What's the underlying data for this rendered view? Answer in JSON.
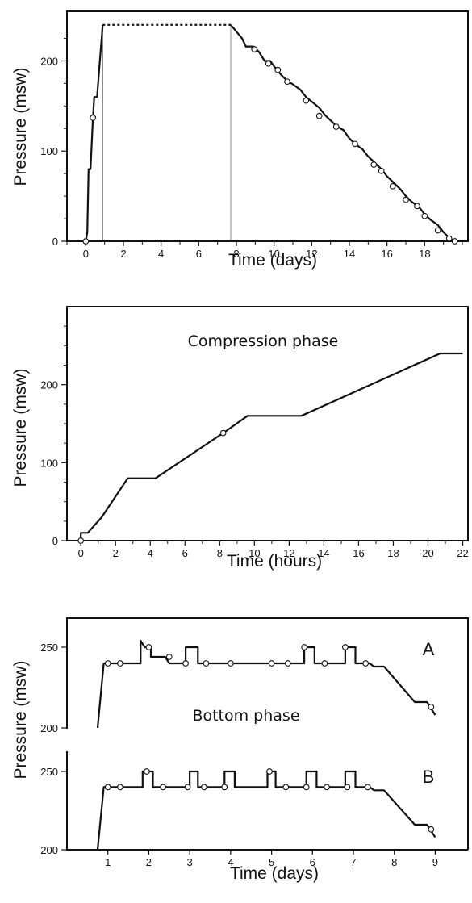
{
  "chart_data": [
    {
      "type": "line",
      "xlabel": "Time (days)",
      "ylabel": "Pressure (msw)",
      "xlim": [
        -1,
        20.3
      ],
      "ylim": [
        0,
        255
      ],
      "xticks": [
        0,
        2,
        4,
        6,
        8,
        10,
        12,
        14,
        16,
        18
      ],
      "yticks": [
        0,
        100,
        200
      ],
      "guide_lines_x": [
        0.9,
        7.7
      ],
      "series": [
        {
          "style": "solid",
          "points": [
            [
              0,
              0
            ],
            [
              0.08,
              10
            ],
            [
              0.15,
              80
            ],
            [
              0.25,
              80
            ],
            [
              0.38,
              137
            ],
            [
              0.45,
              160
            ],
            [
              0.6,
              160
            ],
            [
              0.9,
              240
            ]
          ]
        },
        {
          "style": "dotted",
          "points": [
            [
              0.9,
              240
            ],
            [
              7.7,
              240
            ]
          ]
        },
        {
          "style": "solid-stepped",
          "points": [
            [
              7.7,
              240
            ],
            [
              8.3,
              225
            ],
            [
              8.5,
              216
            ],
            [
              8.9,
              216
            ],
            [
              9.2,
              210
            ],
            [
              9.5,
              200
            ],
            [
              9.8,
              200
            ],
            [
              10.0,
              194
            ],
            [
              10.4,
              184
            ],
            [
              10.7,
              178
            ],
            [
              11.0,
              174
            ],
            [
              11.4,
              168
            ],
            [
              11.7,
              160
            ],
            [
              12.0,
              155
            ],
            [
              12.4,
              148
            ],
            [
              12.7,
              140
            ],
            [
              13.0,
              134
            ],
            [
              13.3,
              128
            ],
            [
              13.7,
              123
            ],
            [
              14.0,
              114
            ],
            [
              14.3,
              108
            ],
            [
              14.7,
              102
            ],
            [
              15.0,
              94
            ],
            [
              15.3,
              88
            ],
            [
              15.7,
              80
            ],
            [
              16.0,
              72
            ],
            [
              16.3,
              66
            ],
            [
              16.7,
              58
            ],
            [
              17.0,
              50
            ],
            [
              17.3,
              44
            ],
            [
              17.7,
              38
            ],
            [
              18.0,
              30
            ],
            [
              18.3,
              24
            ],
            [
              18.7,
              18
            ],
            [
              19.0,
              10
            ],
            [
              19.3,
              4
            ],
            [
              19.6,
              0
            ]
          ]
        }
      ],
      "markers": [
        [
          0,
          0
        ],
        [
          0.38,
          137
        ],
        [
          8.95,
          213
        ],
        [
          9.7,
          197
        ],
        [
          10.2,
          190
        ],
        [
          10.7,
          177
        ],
        [
          11.7,
          156
        ],
        [
          12.4,
          139
        ],
        [
          13.3,
          127
        ],
        [
          14.3,
          108
        ],
        [
          15.3,
          85
        ],
        [
          15.7,
          78
        ],
        [
          16.3,
          61
        ],
        [
          17.0,
          46
        ],
        [
          17.6,
          39
        ],
        [
          18.0,
          28
        ],
        [
          18.7,
          12
        ],
        [
          19.3,
          3
        ],
        [
          19.6,
          0
        ]
      ]
    },
    {
      "type": "line",
      "xlabel": "Time (hours)",
      "ylabel": "Pressure (msw)",
      "xlim": [
        -0.8,
        22.3
      ],
      "ylim": [
        0,
        300
      ],
      "xticks": [
        0,
        2,
        4,
        6,
        8,
        10,
        12,
        14,
        16,
        18,
        20,
        22
      ],
      "yticks": [
        0,
        100,
        200
      ],
      "annotation": "Compression phase",
      "series": [
        {
          "points": [
            [
              0,
              0
            ],
            [
              0,
              10
            ],
            [
              0.4,
              10
            ],
            [
              1.2,
              30
            ],
            [
              2.7,
              80
            ],
            [
              4.3,
              80
            ],
            [
              8.2,
              138
            ],
            [
              9.6,
              160
            ],
            [
              12.7,
              160
            ],
            [
              20.7,
              240
            ],
            [
              22,
              240
            ]
          ]
        }
      ],
      "markers": [
        [
          0,
          0
        ],
        [
          8.2,
          138
        ]
      ]
    },
    {
      "type": "line",
      "panel": "A",
      "xlim": [
        0,
        9.8
      ],
      "ylim": [
        200,
        268
      ],
      "yticks": [
        200,
        250
      ],
      "ylabel": "Pressure (msw)",
      "annotation": "Bottom phase",
      "series": [
        {
          "points": [
            [
              0.75,
              200
            ],
            [
              0.9,
              240
            ],
            [
              1.8,
              240
            ],
            [
              1.8,
              254
            ],
            [
              1.9,
              250
            ],
            [
              2.05,
              250
            ],
            [
              2.05,
              244
            ],
            [
              2.4,
              244
            ],
            [
              2.5,
              240
            ],
            [
              2.9,
              240
            ],
            [
              2.9,
              250
            ],
            [
              3.2,
              250
            ],
            [
              3.2,
              240
            ],
            [
              5.8,
              240
            ],
            [
              5.8,
              250
            ],
            [
              6.05,
              250
            ],
            [
              6.05,
              240
            ],
            [
              6.8,
              240
            ],
            [
              6.8,
              250
            ],
            [
              7.05,
              250
            ],
            [
              7.05,
              240
            ],
            [
              7.4,
              240
            ],
            [
              7.5,
              238
            ],
            [
              7.75,
              238
            ],
            [
              8.5,
              216
            ],
            [
              8.8,
              216
            ],
            [
              9.0,
              208
            ]
          ]
        }
      ],
      "markers": [
        [
          1,
          240
        ],
        [
          1.3,
          240
        ],
        [
          2.0,
          250
        ],
        [
          2.5,
          244
        ],
        [
          2.9,
          240
        ],
        [
          3.4,
          240
        ],
        [
          4.0,
          240
        ],
        [
          5.0,
          240
        ],
        [
          5.4,
          240
        ],
        [
          5.8,
          250
        ],
        [
          6.3,
          240
        ],
        [
          6.8,
          250
        ],
        [
          7.3,
          240
        ],
        [
          8.9,
          213
        ]
      ]
    },
    {
      "type": "line",
      "panel": "B",
      "xlabel": "Time (days)",
      "xlim": [
        0,
        9.8
      ],
      "ylim": [
        200,
        263
      ],
      "xticks": [
        1,
        2,
        3,
        4,
        5,
        6,
        7,
        8,
        9
      ],
      "yticks": [
        200,
        250
      ],
      "series": [
        {
          "points": [
            [
              0.75,
              200
            ],
            [
              0.9,
              240
            ],
            [
              1.85,
              240
            ],
            [
              1.85,
              250
            ],
            [
              2.1,
              250
            ],
            [
              2.1,
              240
            ],
            [
              3.0,
              240
            ],
            [
              3.0,
              250
            ],
            [
              3.2,
              250
            ],
            [
              3.2,
              240
            ],
            [
              3.85,
              240
            ],
            [
              3.85,
              250
            ],
            [
              4.1,
              250
            ],
            [
              4.1,
              240
            ],
            [
              4.9,
              240
            ],
            [
              4.9,
              250
            ],
            [
              5.1,
              250
            ],
            [
              5.1,
              240
            ],
            [
              5.85,
              240
            ],
            [
              5.85,
              250
            ],
            [
              6.1,
              250
            ],
            [
              6.1,
              240
            ],
            [
              6.8,
              240
            ],
            [
              6.8,
              250
            ],
            [
              7.05,
              250
            ],
            [
              7.05,
              240
            ],
            [
              7.4,
              240
            ],
            [
              7.5,
              238
            ],
            [
              7.75,
              238
            ],
            [
              8.5,
              216
            ],
            [
              8.8,
              216
            ],
            [
              9.0,
              208
            ]
          ]
        }
      ],
      "markers": [
        [
          1,
          240
        ],
        [
          1.3,
          240
        ],
        [
          1.95,
          250
        ],
        [
          2.35,
          240
        ],
        [
          2.95,
          240
        ],
        [
          3.35,
          240
        ],
        [
          3.85,
          240
        ],
        [
          4.95,
          250
        ],
        [
          5.35,
          240
        ],
        [
          5.85,
          240
        ],
        [
          6.35,
          240
        ],
        [
          6.85,
          240
        ],
        [
          7.35,
          240
        ],
        [
          8.9,
          213
        ]
      ]
    }
  ]
}
